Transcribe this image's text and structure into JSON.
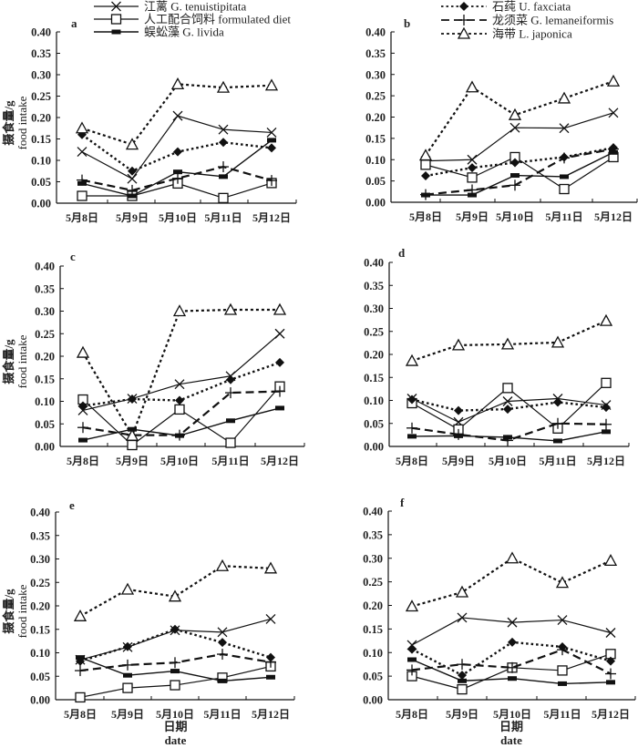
{
  "legend": [
    {
      "key": "tenuistipitata",
      "label": "江蓠 G. tenuistipitata",
      "marker": "x",
      "dash": "solid"
    },
    {
      "key": "formulated",
      "label": "人工配合饲料 formulated diet",
      "marker": "square",
      "dash": "solid"
    },
    {
      "key": "livida",
      "label": "蜈蚣藻 G. livida",
      "marker": "bar",
      "dash": "solid"
    },
    {
      "key": "faxciata",
      "label": "石莼 U. faxciata",
      "marker": "diamond",
      "dash": "dotted"
    },
    {
      "key": "lemaneiformis",
      "label": "龙须菜 G. lemaneiformis",
      "marker": "plus",
      "dash": "dashed"
    },
    {
      "key": "japonica",
      "label": "海带 L. japonica",
      "marker": "triangle",
      "dash": "dotted"
    }
  ],
  "chart_data": [
    {
      "type": "line",
      "panel": "a",
      "categories": [
        "5月8日",
        "5月9日",
        "5月10日",
        "5月11日",
        "5月12日"
      ],
      "ylabel": "摄食量/g food intake",
      "xlabel": "",
      "ylim": [
        0,
        0.4
      ],
      "yticks": [
        "0.00",
        "0.05",
        "0.10",
        "0.15",
        "0.20",
        "0.25",
        "0.30",
        "0.35",
        "0.40"
      ],
      "series": [
        {
          "name": "tenuistipitata",
          "values": [
            0.12,
            0.057,
            0.204,
            0.172,
            0.165
          ]
        },
        {
          "name": "formulated",
          "values": [
            0.017,
            0.017,
            0.046,
            0.012,
            0.047
          ]
        },
        {
          "name": "livida",
          "values": [
            0.046,
            0.017,
            0.073,
            0.062,
            0.147
          ]
        },
        {
          "name": "faxciata",
          "values": [
            0.16,
            0.075,
            0.12,
            0.142,
            0.129
          ]
        },
        {
          "name": "lemaneiformis",
          "values": [
            0.054,
            0.03,
            0.058,
            0.085,
            0.053
          ]
        },
        {
          "name": "japonica",
          "values": [
            0.175,
            0.137,
            0.278,
            0.27,
            0.275
          ]
        }
      ]
    },
    {
      "type": "line",
      "panel": "b",
      "categories": [
        "5月8日",
        "5月9日",
        "5月10日",
        "5月11日",
        "5月12日"
      ],
      "ylabel": "",
      "xlabel": "",
      "ylim": [
        0,
        0.4
      ],
      "yticks": [
        "0.00",
        "0.05",
        "0.10",
        "0.15",
        "0.20",
        "0.25",
        "0.30",
        "0.35",
        "0.40"
      ],
      "series": [
        {
          "name": "tenuistipitata",
          "values": [
            0.097,
            0.1,
            0.175,
            0.174,
            0.21
          ]
        },
        {
          "name": "formulated",
          "values": [
            0.088,
            0.058,
            0.106,
            0.031,
            0.106
          ]
        },
        {
          "name": "livida",
          "values": [
            0.017,
            0.017,
            0.063,
            0.06,
            0.117
          ]
        },
        {
          "name": "faxciata",
          "values": [
            0.062,
            0.081,
            0.093,
            0.106,
            0.128
          ]
        },
        {
          "name": "lemaneiformis",
          "values": [
            0.018,
            0.029,
            0.04,
            0.104,
            0.125
          ]
        },
        {
          "name": "japonica",
          "values": [
            0.11,
            0.27,
            0.205,
            0.244,
            0.284
          ]
        }
      ]
    },
    {
      "type": "line",
      "panel": "c",
      "categories": [
        "5月8日",
        "5月9日",
        "5月10日",
        "5月11日",
        "5月12日"
      ],
      "ylabel": "摄食量/g food intake",
      "xlabel": "",
      "ylim": [
        0,
        0.4
      ],
      "yticks": [
        "0.00",
        "0.05",
        "0.10",
        "0.15",
        "0.20",
        "0.25",
        "0.30",
        "0.35",
        "0.40"
      ],
      "series": [
        {
          "name": "tenuistipitata",
          "values": [
            0.08,
            0.106,
            0.138,
            0.156,
            0.25
          ]
        },
        {
          "name": "formulated",
          "values": [
            0.104,
            0.003,
            0.082,
            0.008,
            0.133
          ]
        },
        {
          "name": "livida",
          "values": [
            0.014,
            0.038,
            0.024,
            0.057,
            0.085
          ]
        },
        {
          "name": "faxciata",
          "values": [
            0.09,
            0.105,
            0.102,
            0.148,
            0.186
          ]
        },
        {
          "name": "lemaneiformis",
          "values": [
            0.042,
            0.025,
            0.025,
            0.119,
            0.122
          ]
        },
        {
          "name": "japonica",
          "values": [
            0.208,
            0.024,
            0.3,
            0.303,
            0.303
          ]
        }
      ]
    },
    {
      "type": "line",
      "panel": "d",
      "categories": [
        "5月8日",
        "5月9日",
        "5月10日",
        "5月11日",
        "5月12日"
      ],
      "ylabel": "",
      "xlabel": "",
      "ylim": [
        0,
        0.4
      ],
      "yticks": [
        "0.00",
        "0.05",
        "0.10",
        "0.15",
        "0.20",
        "0.25",
        "0.30",
        "0.35",
        "0.40"
      ],
      "series": [
        {
          "name": "tenuistipitata",
          "values": [
            0.104,
            0.053,
            0.098,
            0.104,
            0.09
          ]
        },
        {
          "name": "formulated",
          "values": [
            0.094,
            0.037,
            0.127,
            0.039,
            0.138
          ]
        },
        {
          "name": "livida",
          "values": [
            0.022,
            0.023,
            0.02,
            0.012,
            0.032
          ]
        },
        {
          "name": "faxciata",
          "values": [
            0.102,
            0.078,
            0.081,
            0.096,
            0.085
          ]
        },
        {
          "name": "lemaneiformis",
          "values": [
            0.04,
            0.026,
            0.013,
            0.05,
            0.048
          ]
        },
        {
          "name": "japonica",
          "values": [
            0.186,
            0.22,
            0.222,
            0.226,
            0.273
          ]
        }
      ]
    },
    {
      "type": "line",
      "panel": "e",
      "categories": [
        "5月8日",
        "5月9日",
        "5月10日",
        "5月11日",
        "5月12日"
      ],
      "ylabel": "摄食量/g food intake",
      "xlabel": "日期 date",
      "ylim": [
        0,
        0.4
      ],
      "yticks": [
        "0.00",
        "0.05",
        "0.10",
        "0.15",
        "0.20",
        "0.25",
        "0.30",
        "0.35",
        "0.40"
      ],
      "series": [
        {
          "name": "tenuistipitata",
          "values": [
            0.085,
            0.112,
            0.148,
            0.144,
            0.172
          ]
        },
        {
          "name": "formulated",
          "values": [
            0.005,
            0.025,
            0.031,
            0.047,
            0.071
          ]
        },
        {
          "name": "livida",
          "values": [
            0.09,
            0.052,
            0.061,
            0.04,
            0.048
          ]
        },
        {
          "name": "faxciata",
          "values": [
            0.082,
            0.113,
            0.15,
            0.122,
            0.09
          ]
        },
        {
          "name": "lemaneiformis",
          "values": [
            0.062,
            0.074,
            0.079,
            0.097,
            0.08
          ]
        },
        {
          "name": "japonica",
          "values": [
            0.178,
            0.235,
            0.22,
            0.285,
            0.28
          ]
        }
      ]
    },
    {
      "type": "line",
      "panel": "f",
      "categories": [
        "5月8日",
        "5月9日",
        "5月10日",
        "5月11日",
        "5月12日"
      ],
      "ylabel": "",
      "xlabel": "日期 date",
      "ylim": [
        0,
        0.4
      ],
      "yticks": [
        "0.00",
        "0.05",
        "0.10",
        "0.15",
        "0.20",
        "0.25",
        "0.30",
        "0.35",
        "0.40"
      ],
      "series": [
        {
          "name": "tenuistipitata",
          "values": [
            0.116,
            0.174,
            0.164,
            0.169,
            0.142
          ]
        },
        {
          "name": "formulated",
          "values": [
            0.05,
            0.022,
            0.068,
            0.062,
            0.097
          ]
        },
        {
          "name": "livida",
          "values": [
            0.085,
            0.04,
            0.045,
            0.034,
            0.037
          ]
        },
        {
          "name": "faxciata",
          "values": [
            0.107,
            0.052,
            0.122,
            0.112,
            0.082
          ]
        },
        {
          "name": "lemaneiformis",
          "values": [
            0.063,
            0.075,
            0.068,
            0.106,
            0.055
          ]
        },
        {
          "name": "japonica",
          "values": [
            0.198,
            0.228,
            0.3,
            0.248,
            0.295
          ]
        }
      ]
    }
  ],
  "axis_titles": {
    "y_cn": "摄食量/g",
    "y_en": "food intake",
    "x_cn": "日期",
    "x_en": "date"
  }
}
